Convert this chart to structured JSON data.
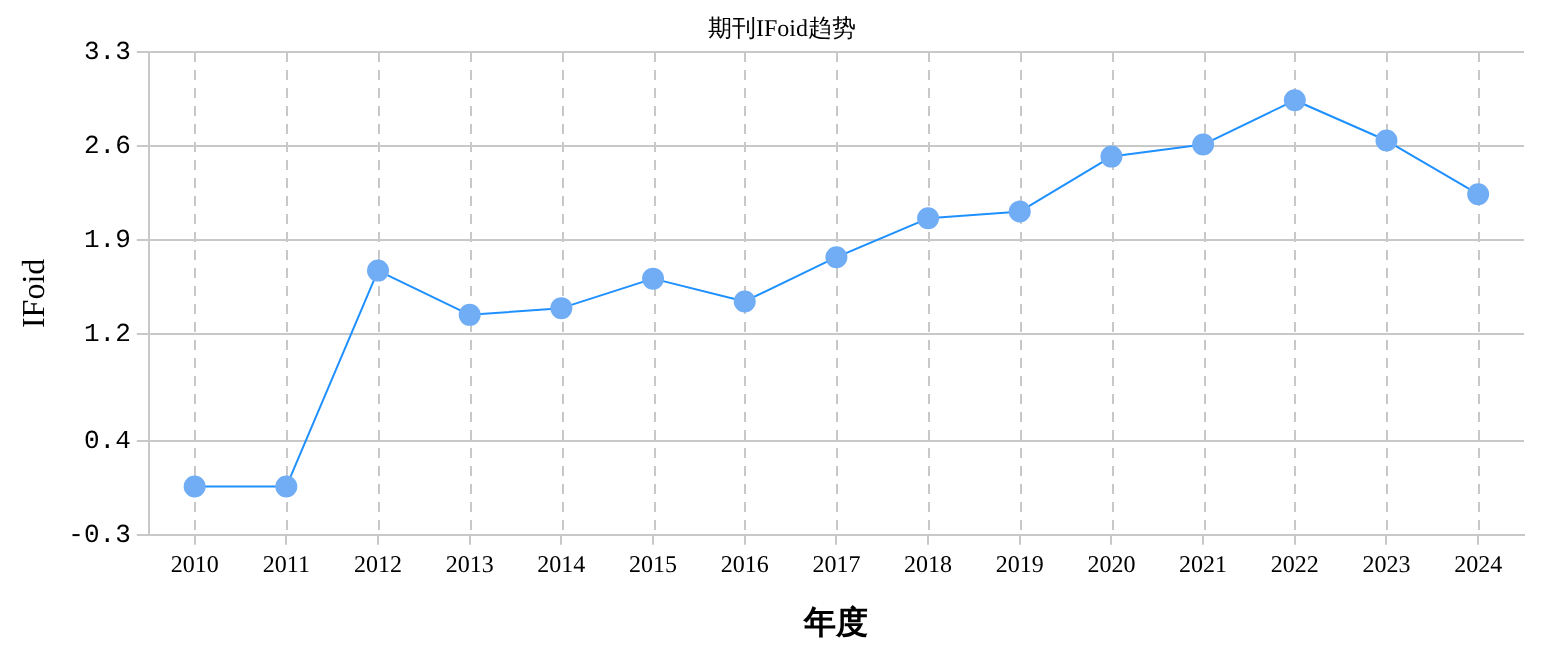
{
  "chart_data": {
    "type": "line",
    "title": "期刊IFoid趋势",
    "xlabel": "年度",
    "ylabel": "IFoid",
    "categories": [
      "2010",
      "2011",
      "2012",
      "2013",
      "2014",
      "2015",
      "2016",
      "2017",
      "2018",
      "2019",
      "2020",
      "2021",
      "2022",
      "2023",
      "2024"
    ],
    "series": [
      {
        "color": "#1e90ff",
        "values": [
          0.06,
          0.06,
          1.67,
          1.34,
          1.39,
          1.61,
          1.44,
          1.77,
          2.06,
          2.11,
          2.52,
          2.61,
          2.94,
          2.64,
          2.24
        ]
      }
    ],
    "ylim": [
      -0.3,
      3.3
    ],
    "yticks": [
      -0.3,
      0.4,
      1.2,
      1.9,
      2.6,
      3.3
    ],
    "grid": true,
    "marker": "circle",
    "line_style": "solid",
    "legend": false
  }
}
